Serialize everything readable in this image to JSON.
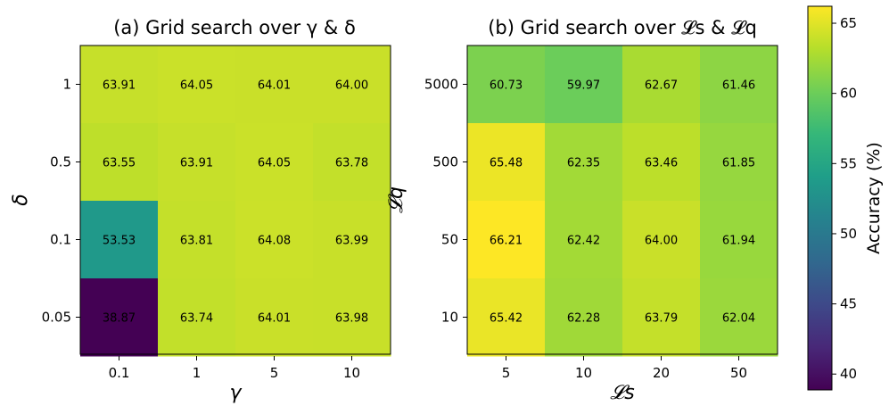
{
  "chart_data": [
    {
      "type": "heatmap",
      "title": "(a) Grid search over γ & δ",
      "xlabel": "γ",
      "ylabel": "δ",
      "x_categories": [
        "0.1",
        "1",
        "5",
        "10"
      ],
      "y_categories": [
        "1",
        "0.5",
        "0.1",
        "0.05"
      ],
      "values": [
        [
          63.91,
          64.05,
          64.01,
          64.0
        ],
        [
          63.55,
          63.91,
          64.05,
          63.78
        ],
        [
          53.53,
          63.81,
          64.08,
          63.99
        ],
        [
          38.87,
          63.74,
          64.01,
          63.98
        ]
      ],
      "labels": [
        [
          "63.91",
          "64.05",
          "64.01",
          "64.00"
        ],
        [
          "63.55",
          "63.91",
          "64.05",
          "63.78"
        ],
        [
          "53.53",
          "63.81",
          "64.08",
          "63.99"
        ],
        [
          "38.87",
          "63.74",
          "64.01",
          "63.98"
        ]
      ],
      "colormap": "viridis"
    },
    {
      "type": "heatmap",
      "title": "(b) Grid search over 𝓛s & 𝓛q",
      "xlabel": "𝓛s",
      "ylabel": "𝓛q",
      "x_categories": [
        "5",
        "10",
        "20",
        "50"
      ],
      "y_categories": [
        "5000",
        "500",
        "50",
        "10"
      ],
      "values": [
        [
          60.73,
          59.97,
          62.67,
          61.46
        ],
        [
          65.48,
          62.35,
          63.46,
          61.85
        ],
        [
          66.21,
          62.42,
          64.0,
          61.94
        ],
        [
          65.42,
          62.28,
          63.79,
          62.04
        ]
      ],
      "labels": [
        [
          "60.73",
          "59.97",
          "62.67",
          "61.46"
        ],
        [
          "65.48",
          "62.35",
          "63.46",
          "61.85"
        ],
        [
          "66.21",
          "62.42",
          "64.00",
          "61.94"
        ],
        [
          "65.42",
          "62.28",
          "63.79",
          "62.04"
        ]
      ],
      "colormap": "viridis"
    }
  ],
  "colorbar": {
    "label": "Accuracy (%)",
    "vmin": 38.87,
    "vmax": 66.21,
    "ticks": [
      40,
      45,
      50,
      55,
      60,
      65
    ],
    "tick_labels": [
      "40",
      "45",
      "50",
      "55",
      "60",
      "65"
    ]
  }
}
